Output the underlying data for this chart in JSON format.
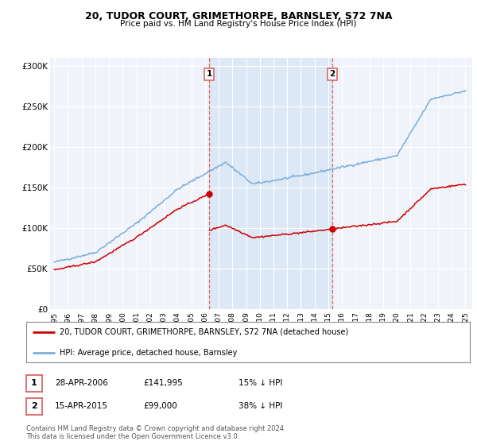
{
  "title": "20, TUDOR COURT, GRIMETHORPE, BARNSLEY, S72 7NA",
  "subtitle": "Price paid vs. HM Land Registry's House Price Index (HPI)",
  "background_color": "#ffffff",
  "plot_bg_color": "#f0f4fa",
  "shade_color": "#dce8f5",
  "grid_color": "#ffffff",
  "hpi_color": "#7aaddd",
  "price_color": "#cc0000",
  "vline_color": "#dd6666",
  "sale1_date_x": 2006.3,
  "sale1_price": 141995,
  "sale2_date_x": 2015.3,
  "sale2_price": 99000,
  "ylim_min": 0,
  "ylim_max": 310000,
  "xlim_min": 1994.7,
  "xlim_max": 2025.5,
  "yticks": [
    0,
    50000,
    100000,
    150000,
    200000,
    250000,
    300000
  ],
  "ytick_labels": [
    "£0",
    "£50K",
    "£100K",
    "£150K",
    "£200K",
    "£250K",
    "£300K"
  ],
  "xticks": [
    1995,
    1996,
    1997,
    1998,
    1999,
    2000,
    2001,
    2002,
    2003,
    2004,
    2005,
    2006,
    2007,
    2008,
    2009,
    2010,
    2011,
    2012,
    2013,
    2014,
    2015,
    2016,
    2017,
    2018,
    2019,
    2020,
    2021,
    2022,
    2023,
    2024,
    2025
  ],
  "legend_line1": "20, TUDOR COURT, GRIMETHORPE, BARNSLEY, S72 7NA (detached house)",
  "legend_line2": "HPI: Average price, detached house, Barnsley",
  "footnote_line1": "Contains HM Land Registry data © Crown copyright and database right 2024.",
  "footnote_line2": "This data is licensed under the Open Government Licence v3.0.",
  "table_row1": [
    "1",
    "28-APR-2006",
    "£141,995",
    "15% ↓ HPI"
  ],
  "table_row2": [
    "2",
    "15-APR-2015",
    "£99,000",
    "38% ↓ HPI"
  ]
}
